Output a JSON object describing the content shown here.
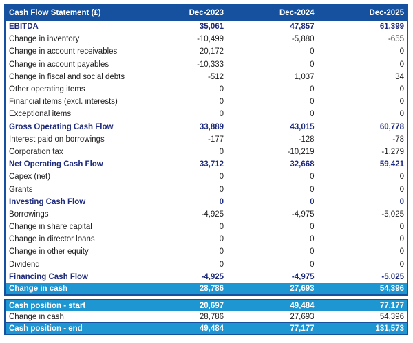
{
  "colors": {
    "header_bg": "#15519E",
    "border": "#15519E",
    "highlight_bg": "#1E96D2",
    "section_text": "#1E2B7D",
    "body_text": "#1D1D1D",
    "header_text": "#FFFFFF"
  },
  "chart_data": {
    "type": "table",
    "title": "Cash Flow Statement (£)",
    "columns": [
      "Dec-2023",
      "Dec-2024",
      "Dec-2025"
    ],
    "rows": [
      {
        "label": "EBITDA",
        "values": [
          "35,061",
          "47,857",
          "61,399"
        ],
        "style": "bold"
      },
      {
        "label": "Change in inventory",
        "values": [
          "-10,499",
          "-5,880",
          "-655"
        ],
        "style": "normal"
      },
      {
        "label": "Change in account receivables",
        "values": [
          "20,172",
          "0",
          "0"
        ],
        "style": "normal"
      },
      {
        "label": "Change in account payables",
        "values": [
          "-10,333",
          "0",
          "0"
        ],
        "style": "normal"
      },
      {
        "label": "Change in fiscal and social debts",
        "values": [
          "-512",
          "1,037",
          "34"
        ],
        "style": "normal"
      },
      {
        "label": "Other operating items",
        "values": [
          "0",
          "0",
          "0"
        ],
        "style": "normal"
      },
      {
        "label": "Financial items (excl. interests)",
        "values": [
          "0",
          "0",
          "0"
        ],
        "style": "normal"
      },
      {
        "label": "Exceptional items",
        "values": [
          "0",
          "0",
          "0"
        ],
        "style": "normal"
      },
      {
        "label": "Gross Operating Cash Flow",
        "values": [
          "33,889",
          "43,015",
          "60,778"
        ],
        "style": "bold"
      },
      {
        "label": "Interest paid on borrowings",
        "values": [
          "-177",
          "-128",
          "-78"
        ],
        "style": "normal"
      },
      {
        "label": "Corporation tax",
        "values": [
          "0",
          "-10,219",
          "-1,279"
        ],
        "style": "normal"
      },
      {
        "label": "Net Operating Cash Flow",
        "values": [
          "33,712",
          "32,668",
          "59,421"
        ],
        "style": "bold"
      },
      {
        "label": "Capex (net)",
        "values": [
          "0",
          "0",
          "0"
        ],
        "style": "normal"
      },
      {
        "label": "Grants",
        "values": [
          "0",
          "0",
          "0"
        ],
        "style": "normal"
      },
      {
        "label": "Investing Cash Flow",
        "values": [
          "0",
          "0",
          "0"
        ],
        "style": "bold"
      },
      {
        "label": "Borrowings",
        "values": [
          "-4,925",
          "-4,975",
          "-5,025"
        ],
        "style": "normal"
      },
      {
        "label": "Change in share capital",
        "values": [
          "0",
          "0",
          "0"
        ],
        "style": "normal"
      },
      {
        "label": "Change in director loans",
        "values": [
          "0",
          "0",
          "0"
        ],
        "style": "normal"
      },
      {
        "label": "Change in other equity",
        "values": [
          "0",
          "0",
          "0"
        ],
        "style": "normal"
      },
      {
        "label": "Dividend",
        "values": [
          "0",
          "0",
          "0"
        ],
        "style": "normal"
      },
      {
        "label": "Financing Cash Flow",
        "values": [
          "-4,925",
          "-4,975",
          "-5,025"
        ],
        "style": "bold"
      },
      {
        "label": "Change in cash",
        "values": [
          "28,786",
          "27,693",
          "54,396"
        ],
        "style": "highlight"
      }
    ],
    "summary_rows": [
      {
        "label": "Cash position - start",
        "values": [
          "20,697",
          "49,484",
          "77,177"
        ],
        "style": "highlight"
      },
      {
        "label": "Change in cash",
        "values": [
          "28,786",
          "27,693",
          "54,396"
        ],
        "style": "normal"
      },
      {
        "label": "Cash position - end",
        "values": [
          "49,484",
          "77,177",
          "131,573"
        ],
        "style": "highlight"
      }
    ]
  }
}
